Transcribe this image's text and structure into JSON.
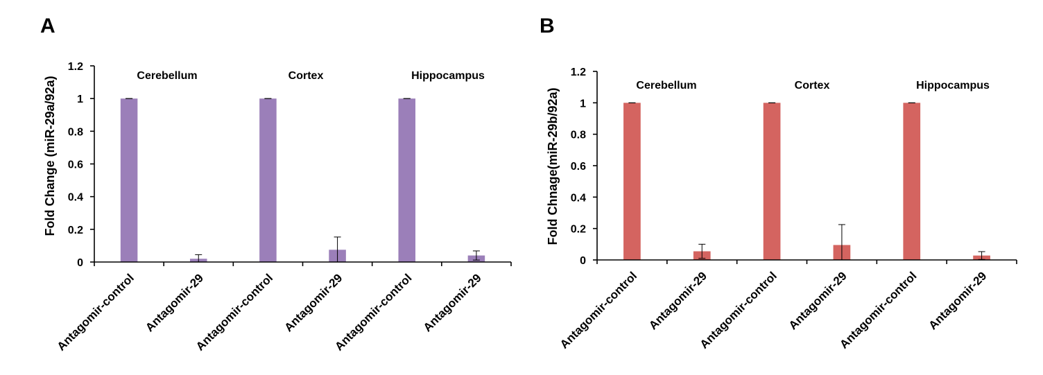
{
  "chart_data": [
    {
      "panel": "A",
      "type": "bar",
      "ylabel": "Fold Change (miR-29a/92a)",
      "xlabel": "",
      "ylim": [
        0,
        1.2
      ],
      "yticks": [
        "0",
        "0.2",
        "0.4",
        "0.6",
        "0.8",
        "1",
        "1.2"
      ],
      "color": "#9B7FB9",
      "groups": [
        "Cerebellum",
        "Cortex",
        "Hippocampus"
      ],
      "categories": [
        "Antagomir-control",
        "Antagomir-29",
        "Antagomir-control",
        "Antagomir-29",
        "Antagomir-control",
        "Antagomir-29"
      ],
      "values": [
        1.0,
        0.02,
        1.0,
        0.075,
        1.0,
        0.04
      ],
      "errors": [
        0,
        0.025,
        0,
        0.078,
        0,
        0.028
      ]
    },
    {
      "panel": "B",
      "type": "bar",
      "ylabel": "Fold Chnage(miR-29b/92a)",
      "xlabel": "",
      "ylim": [
        0,
        1.2
      ],
      "yticks": [
        "0",
        "0.2",
        "0.4",
        "0.6",
        "0.8",
        "1",
        "1.2"
      ],
      "color": "#D46460",
      "groups": [
        "Cerebellum",
        "Cortex",
        "Hippocampus"
      ],
      "categories": [
        "Antagomir-control",
        "Antagomir-29",
        "Antagomir-control",
        "Antagomir-29",
        "Antagomir-control",
        "Antagomir-29"
      ],
      "values": [
        1.0,
        0.055,
        1.0,
        0.095,
        1.0,
        0.028
      ],
      "errors": [
        0,
        0.045,
        0,
        0.13,
        0,
        0.025
      ]
    }
  ]
}
